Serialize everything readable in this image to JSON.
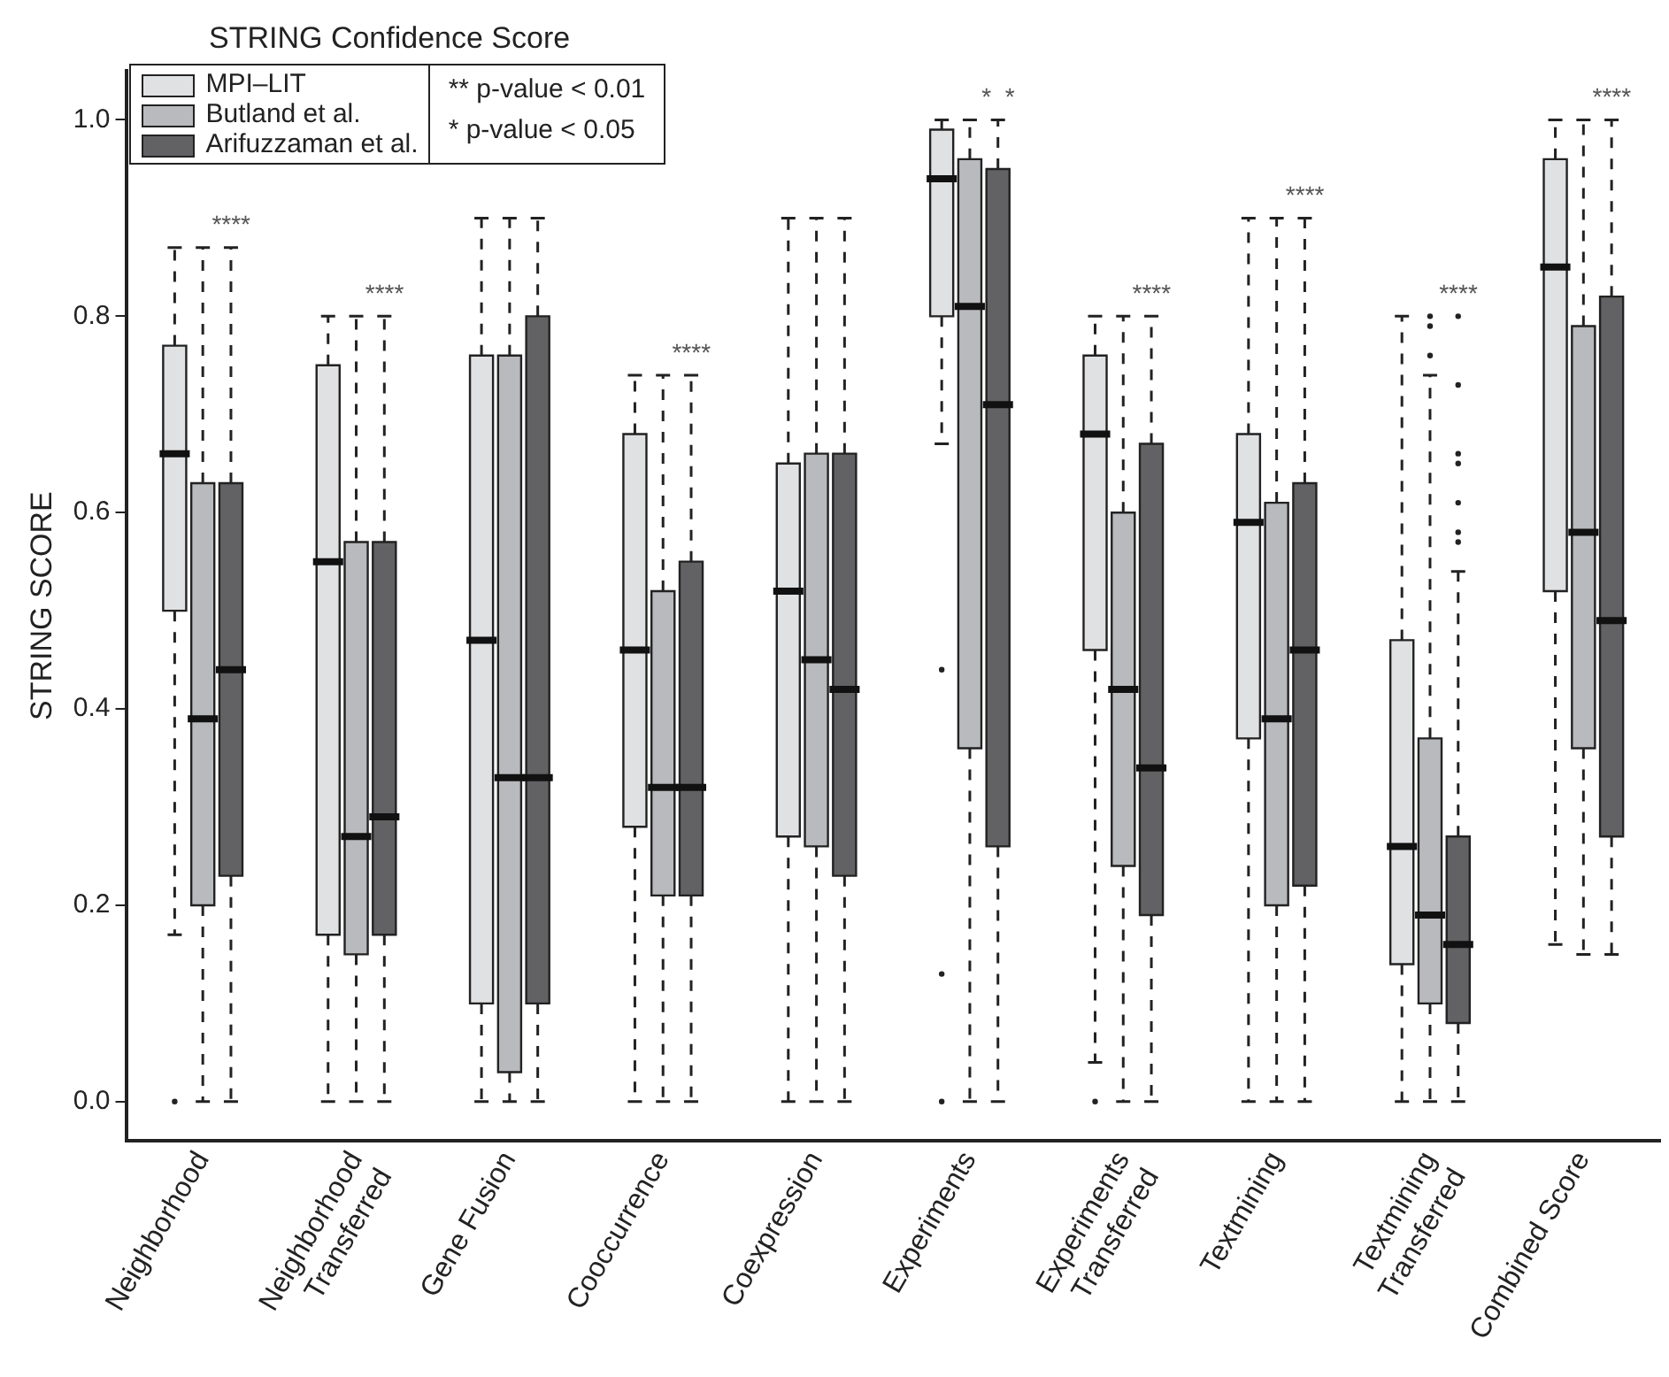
{
  "chart_data": {
    "type": "box",
    "title": "STRING Confidence Score",
    "ylabel": "STRING SCORE",
    "categories": [
      "Neighborhood",
      "Neighborhood\nTransferred",
      "Gene Fusion",
      "Cooccurrence",
      "Coexpression",
      "Experiments",
      "Experiments\nTransferred",
      "Textmining",
      "Textmining\nTransferred",
      "Combined Score"
    ],
    "ylim": [
      -0.04,
      1.05
    ],
    "yticks": [
      {
        "value": 0,
        "label": "0.0"
      },
      0.2,
      0.4,
      0.6,
      0.8,
      {
        "value": 1,
        "label": "1.0"
      }
    ],
    "grid": false,
    "legend": "top left",
    "series": [
      {
        "name": "MPI–LIT",
        "color": "#e0e1e3",
        "boxes": [
          {
            "low": 0.17,
            "q1": 0.5,
            "median": 0.66,
            "q3": 0.77,
            "high": 0.87,
            "outliers": [
              0
            ]
          },
          {
            "low": 0,
            "q1": 0.17,
            "median": 0.55,
            "q3": 0.75,
            "high": 0.8
          },
          {
            "low": 0,
            "q1": 0.1,
            "median": 0.47,
            "q3": 0.76,
            "high": 0.9
          },
          {
            "low": 0,
            "q1": 0.28,
            "median": 0.46,
            "q3": 0.68,
            "high": 0.74
          },
          {
            "low": 0,
            "q1": 0.27,
            "median": 0.52,
            "q3": 0.65,
            "high": 0.9
          },
          {
            "low": 0.67,
            "q1": 0.8,
            "median": 0.94,
            "q3": 0.99,
            "high": 1.0,
            "outliers": [
              0.44,
              0.13,
              0
            ]
          },
          {
            "low": 0.04,
            "q1": 0.46,
            "median": 0.68,
            "q3": 0.76,
            "high": 0.8,
            "outliers": [
              0
            ]
          },
          {
            "low": 0,
            "q1": 0.37,
            "median": 0.59,
            "q3": 0.68,
            "high": 0.9
          },
          {
            "low": 0,
            "q1": 0.14,
            "median": 0.26,
            "q3": 0.47,
            "high": 0.8
          },
          {
            "low": 0.16,
            "q1": 0.52,
            "median": 0.85,
            "q3": 0.96,
            "high": 1.0
          }
        ]
      },
      {
        "name": "Butland et al.",
        "color": "#b9babd",
        "boxes": [
          {
            "low": 0,
            "q1": 0.2,
            "median": 0.39,
            "q3": 0.63,
            "high": 0.87
          },
          {
            "low": 0,
            "q1": 0.15,
            "median": 0.27,
            "q3": 0.57,
            "high": 0.8
          },
          {
            "low": 0,
            "q1": 0.03,
            "median": 0.33,
            "q3": 0.76,
            "high": 0.9
          },
          {
            "low": 0,
            "q1": 0.21,
            "median": 0.32,
            "q3": 0.52,
            "high": 0.74
          },
          {
            "low": 0,
            "q1": 0.26,
            "median": 0.45,
            "q3": 0.66,
            "high": 0.9
          },
          {
            "low": 0,
            "q1": 0.36,
            "median": 0.81,
            "q3": 0.96,
            "high": 1.0
          },
          {
            "low": 0,
            "q1": 0.24,
            "median": 0.42,
            "q3": 0.6,
            "high": 0.8
          },
          {
            "low": 0,
            "q1": 0.2,
            "median": 0.39,
            "q3": 0.61,
            "high": 0.9
          },
          {
            "low": 0,
            "q1": 0.1,
            "median": 0.19,
            "q3": 0.37,
            "high": 0.74,
            "outliers": [
              0.8,
              0.79,
              0.76
            ]
          },
          {
            "low": 0.15,
            "q1": 0.36,
            "median": 0.58,
            "q3": 0.79,
            "high": 1.0
          }
        ]
      },
      {
        "name": "Arifuzzaman et al.",
        "color": "#626264",
        "boxes": [
          {
            "low": 0,
            "q1": 0.23,
            "median": 0.44,
            "q3": 0.63,
            "high": 0.87
          },
          {
            "low": 0,
            "q1": 0.17,
            "median": 0.29,
            "q3": 0.57,
            "high": 0.8
          },
          {
            "low": 0,
            "q1": 0.1,
            "median": 0.33,
            "q3": 0.8,
            "high": 0.9
          },
          {
            "low": 0,
            "q1": 0.21,
            "median": 0.32,
            "q3": 0.55,
            "high": 0.74
          },
          {
            "low": 0,
            "q1": 0.23,
            "median": 0.42,
            "q3": 0.66,
            "high": 0.9
          },
          {
            "low": 0,
            "q1": 0.26,
            "median": 0.71,
            "q3": 0.95,
            "high": 1.0
          },
          {
            "low": 0,
            "q1": 0.19,
            "median": 0.34,
            "q3": 0.67,
            "high": 0.8
          },
          {
            "low": 0,
            "q1": 0.22,
            "median": 0.46,
            "q3": 0.63,
            "high": 0.9
          },
          {
            "low": 0,
            "q1": 0.08,
            "median": 0.16,
            "q3": 0.27,
            "high": 0.54,
            "outliers": [
              0.8,
              0.73,
              0.66,
              0.65,
              0.61,
              0.58,
              0.57
            ]
          },
          {
            "low": 0.15,
            "q1": 0.27,
            "median": 0.49,
            "q3": 0.82,
            "high": 1.0
          }
        ]
      }
    ],
    "annotations": [
      "**  p-value < 0.01",
      "*  p-value < 0.05",
      {
        "text": "****",
        "x": "Neighborhood",
        "y": 0.87
      },
      {
        "text": "****",
        "x": "Neighborhood\nTransferred",
        "y": 0.8
      },
      {
        "text": "****",
        "x": "Cooccurrence",
        "y": 0.74
      },
      {
        "text": "*  *",
        "x": "Experiments",
        "y": 1.0
      },
      {
        "text": "****",
        "x": "Experiments\nTransferred",
        "y": 0.8
      },
      {
        "text": "****",
        "x": "Textmining",
        "y": 0.9
      },
      {
        "text": "****",
        "x": "Textmining\nTransferred",
        "y": 0.74
      },
      {
        "text": "****",
        "x": "Combined Score",
        "y": 1.0
      }
    ]
  }
}
